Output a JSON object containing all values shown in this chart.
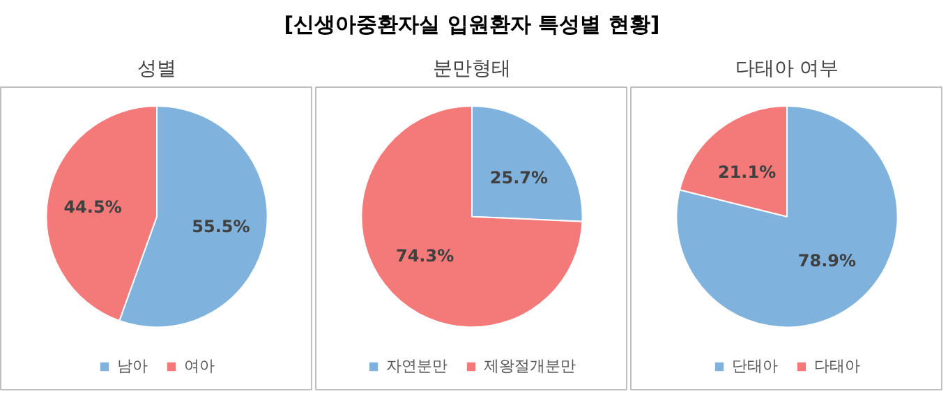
{
  "chart_data": [
    {
      "type": "other",
      "title": "[신생아중환자실 입원환자 특성별 현황]"
    },
    {
      "type": "pie",
      "title": "성별",
      "categories": [
        "남아",
        "여아"
      ],
      "values": [
        55.5,
        44.5
      ],
      "colors": [
        "#7fb2dc",
        "#f47a7a"
      ],
      "value_labels": [
        "55.5%",
        "44.5%"
      ],
      "legend": "bottom"
    },
    {
      "type": "pie",
      "title": "분만형태",
      "categories": [
        "자연분만",
        "제왕절개분만"
      ],
      "values": [
        25.7,
        74.3
      ],
      "colors": [
        "#7fb2dc",
        "#f47a7a"
      ],
      "value_labels": [
        "25.7%",
        "74.3%"
      ],
      "legend": "bottom"
    },
    {
      "type": "pie",
      "title": "다태아 여부",
      "categories": [
        "단태아",
        "다태아"
      ],
      "values": [
        78.9,
        21.1
      ],
      "colors": [
        "#7fb2dc",
        "#f47a7a"
      ],
      "value_labels": [
        "78.9%",
        "21.1%"
      ],
      "legend": "bottom"
    }
  ]
}
